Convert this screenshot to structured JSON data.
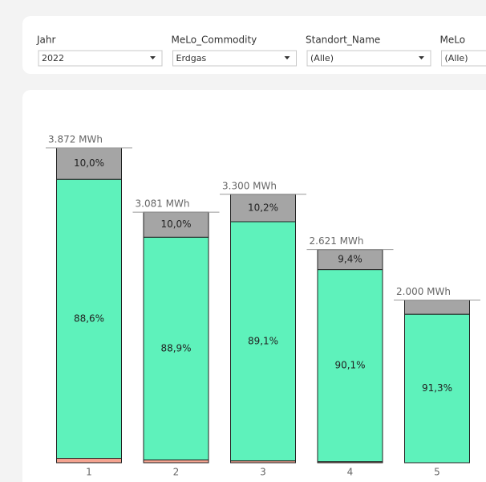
{
  "filters": [
    {
      "label": "Jahr",
      "value": "2022"
    },
    {
      "label": "MeLo_Commodity",
      "value": "Erdgas"
    },
    {
      "label": "Standort_Name",
      "value": "(Alle)"
    },
    {
      "label": "MeLo",
      "value": "(Alle)"
    }
  ],
  "chart_data": {
    "type": "stacked-bar",
    "categories": [
      "1",
      "2",
      "3",
      "4",
      "5"
    ],
    "totals": {
      "values": [
        3872,
        3081,
        3300,
        2621,
        2000
      ],
      "value_labels": [
        "3.872 MWh",
        "3.081 MWh",
        "3.300 MWh",
        "2.621 MWh",
        "2.000 MWh"
      ]
    },
    "series": [
      {
        "color": "#f4a390",
        "values": [
          1.4,
          1.1,
          0.7,
          0.5,
          0
        ],
        "value_labels": [
          null,
          null,
          null,
          null,
          null
        ]
      },
      {
        "color": "#5ef2bb",
        "values": [
          88.6,
          88.9,
          89.1,
          90.1,
          91.3
        ],
        "value_labels": [
          "88,6%",
          "88,9%",
          "89,1%",
          "90,1%",
          "91,3%"
        ]
      },
      {
        "color": "#a5a5a5",
        "values": [
          10.0,
          10.0,
          10.2,
          9.4,
          8.7
        ],
        "value_labels": [
          "10,0%",
          "10,0%",
          "10,2%",
          "9,4%",
          null
        ]
      }
    ]
  }
}
